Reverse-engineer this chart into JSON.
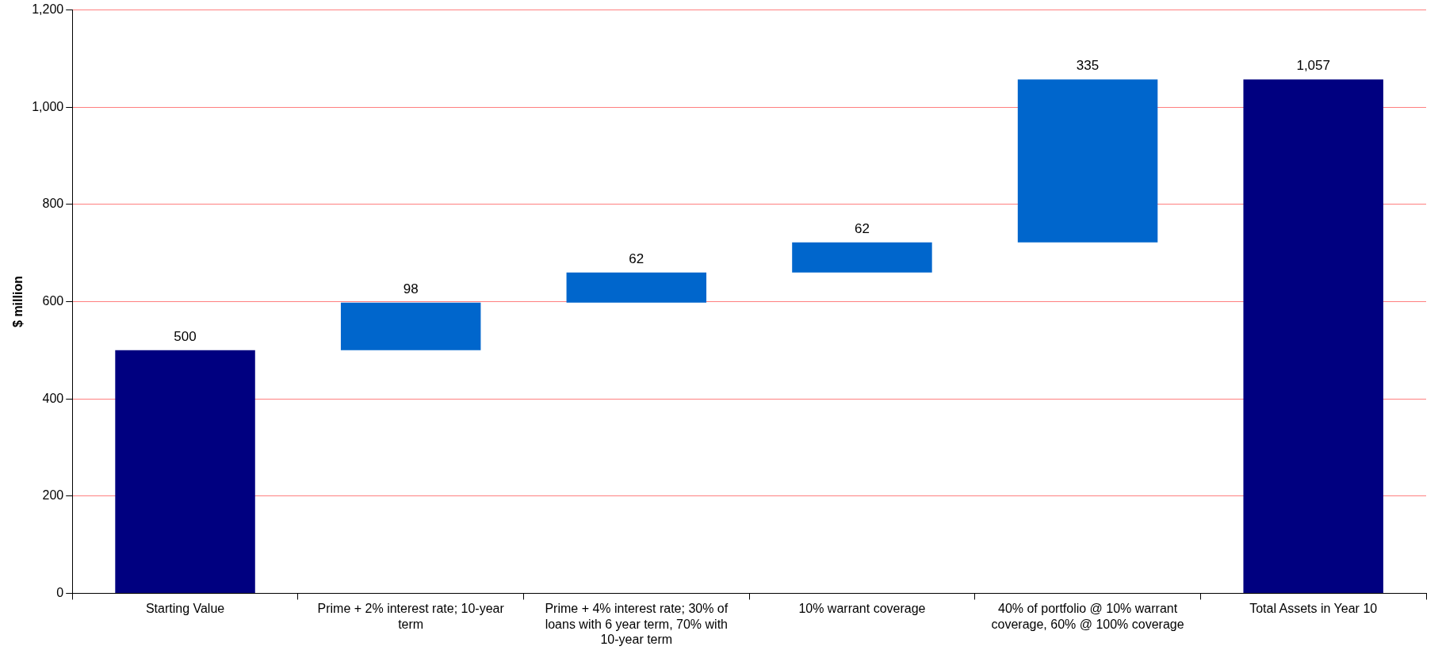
{
  "chart_data": {
    "type": "bar",
    "ylabel": "$ million",
    "categories": [
      "Starting Value",
      "Prime + 2% interest rate; 10-year term",
      "Prime + 4% interest rate; 30% of loans with 6 year term, 70% with 10-year term",
      "10% warrant coverage",
      "40% of portfolio @ 10% warrant coverage, 60% @ 100% coverage",
      "Total Assets in Year 10"
    ],
    "values": [
      500,
      98,
      62,
      62,
      335,
      1057
    ],
    "base": [
      0,
      500,
      598,
      660,
      722,
      0
    ],
    "colors": [
      "#000080",
      "#0066cc",
      "#0066cc",
      "#0066cc",
      "#0066cc",
      "#000080"
    ],
    "value_labels": [
      "500",
      "98",
      "62",
      "62",
      "335",
      "1,057"
    ],
    "ylim": [
      0,
      1200
    ],
    "yticks": [
      0,
      200,
      400,
      600,
      800,
      {
        "value": 1000,
        "label": "1,000"
      },
      {
        "value": 1200,
        "label": "1,200"
      }
    ],
    "grid": "y"
  }
}
